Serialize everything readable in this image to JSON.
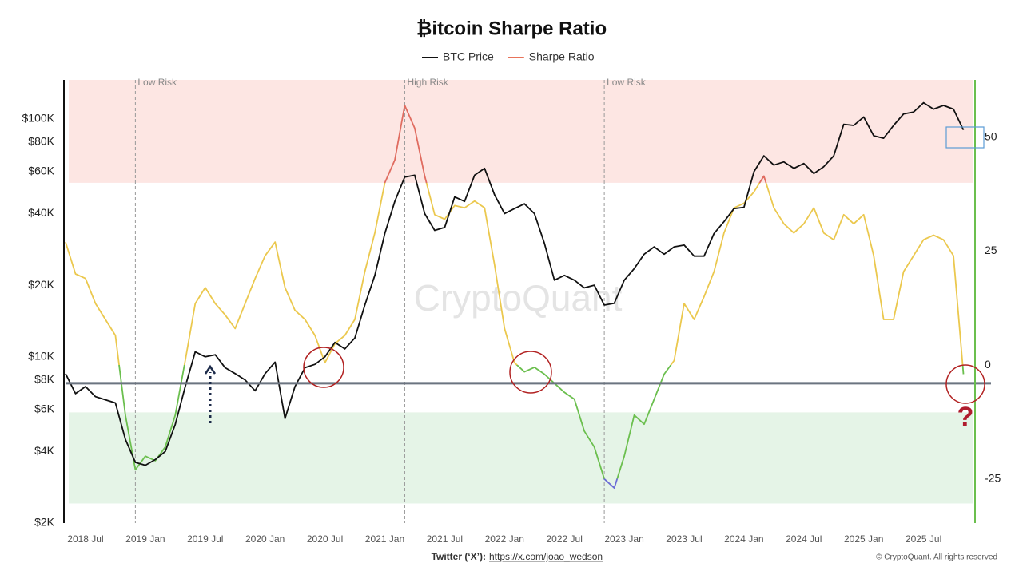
{
  "chart_data": {
    "type": "line",
    "title": "₿itcoin Sharpe Ratio",
    "watermark": "CryptoQuant",
    "credit_label": "Twitter (‘X’):",
    "credit_url": "https://x.com/joao_wedson",
    "copyright": "© CryptoQuant. All rights reserved",
    "annotation_symbol": "?",
    "x": [
      "2018-05",
      "2018-06",
      "2018-07",
      "2018-08",
      "2018-09",
      "2018-10",
      "2018-11",
      "2018-12",
      "2019-01",
      "2019-02",
      "2019-03",
      "2019-04",
      "2019-05",
      "2019-06",
      "2019-07",
      "2019-08",
      "2019-09",
      "2019-10",
      "2019-11",
      "2019-12",
      "2020-01",
      "2020-02",
      "2020-03",
      "2020-04",
      "2020-05",
      "2020-06",
      "2020-07",
      "2020-08",
      "2020-09",
      "2020-10",
      "2020-11",
      "2020-12",
      "2021-01",
      "2021-02",
      "2021-03",
      "2021-04",
      "2021-05",
      "2021-06",
      "2021-07",
      "2021-08",
      "2021-09",
      "2021-10",
      "2021-11",
      "2021-12",
      "2022-01",
      "2022-02",
      "2022-03",
      "2022-04",
      "2022-05",
      "2022-06",
      "2022-07",
      "2022-08",
      "2022-09",
      "2022-10",
      "2022-11",
      "2022-12",
      "2023-01",
      "2023-02",
      "2023-03",
      "2023-04",
      "2023-05",
      "2023-06",
      "2023-07",
      "2023-08",
      "2023-09",
      "2023-10",
      "2023-11",
      "2023-12",
      "2024-01",
      "2024-02",
      "2024-03",
      "2024-04",
      "2024-05",
      "2024-06",
      "2024-07",
      "2024-08",
      "2024-09",
      "2024-10",
      "2024-11",
      "2024-12",
      "2025-01",
      "2025-02",
      "2025-03",
      "2025-04",
      "2025-05",
      "2025-06",
      "2025-07",
      "2025-08",
      "2025-09",
      "2025-10",
      "2025-11"
    ],
    "series": [
      {
        "name": "BTC Price",
        "color": "#111111",
        "axis": "y",
        "values": [
          8500,
          7000,
          7500,
          6800,
          6600,
          6400,
          4500,
          3600,
          3500,
          3700,
          4000,
          5200,
          7500,
          10500,
          10000,
          10200,
          9000,
          8500,
          8000,
          7200,
          8500,
          9500,
          5500,
          7500,
          9000,
          9300,
          10000,
          11500,
          10800,
          12000,
          16500,
          22000,
          33000,
          45000,
          57000,
          58000,
          40000,
          34000,
          35000,
          47000,
          45000,
          58000,
          62000,
          48000,
          40000,
          42000,
          44000,
          40000,
          30000,
          21000,
          22000,
          21000,
          19500,
          20000,
          16500,
          16800,
          21000,
          23500,
          27000,
          29000,
          27000,
          29000,
          29500,
          26500,
          26500,
          33000,
          37000,
          42000,
          42500,
          60000,
          70000,
          64000,
          66000,
          62000,
          65000,
          59000,
          63000,
          70000,
          95000,
          94000,
          102000,
          85000,
          83000,
          94000,
          105000,
          107000,
          117000,
          110000,
          114000,
          110000,
          90000
        ]
      },
      {
        "name": "Sharpe Ratio",
        "color": "#e8735a",
        "axis": "y2",
        "values": [
          27,
          20,
          19,
          13.5,
          10,
          6.5,
          -11,
          -23,
          -20,
          -21,
          -18,
          -11,
          1,
          13.5,
          17,
          13.5,
          11,
          8,
          13.5,
          19,
          24,
          27,
          17,
          12,
          10,
          6.5,
          0.5,
          4.7,
          6.5,
          10,
          20.5,
          29,
          40,
          45,
          57,
          52,
          41.5,
          33,
          32,
          35,
          34.5,
          36,
          34.5,
          22,
          8,
          0.5,
          -1.5,
          -0.5,
          -2,
          -4,
          -6,
          -7.5,
          -14.5,
          -18,
          -25,
          -27,
          -20,
          -11,
          -13,
          -7.5,
          -2,
          1,
          13.5,
          10,
          15,
          20.5,
          29,
          34.5,
          35.5,
          38,
          41.5,
          34.5,
          31,
          29,
          31,
          34.5,
          29,
          27.5,
          33,
          31,
          33,
          24,
          10,
          10,
          20.5,
          24,
          27.5,
          28.5,
          27.5,
          24,
          -2
        ]
      }
    ],
    "zone_colors": [
      {
        "above": 40,
        "color": "#e06c60"
      },
      {
        "above": 0,
        "color": "#ebc84e"
      },
      {
        "above": -25,
        "color": "#6bbf4e"
      },
      {
        "color": "#6b6bd6"
      }
    ],
    "shaded_bands": [
      {
        "from": 40,
        "to": 62.6,
        "color": "#fde6e3"
      },
      {
        "from": -30.4,
        "to": -10.4,
        "color": "#e5f4e7"
      }
    ],
    "reference_line": -4,
    "markers": [
      {
        "x": "2018-12",
        "label": "Low Risk"
      },
      {
        "x": "2021-03",
        "label": "High Risk"
      },
      {
        "x": "2022-11",
        "label": "Low Risk"
      }
    ],
    "xlim": [
      "2018-05",
      "2025-12"
    ],
    "xticks": [
      {
        "value": "2018-07",
        "label": "2018 Jul"
      },
      {
        "value": "2019-01",
        "label": "2019 Jan"
      },
      {
        "value": "2019-07",
        "label": "2019 Jul"
      },
      {
        "value": "2020-01",
        "label": "2020 Jan"
      },
      {
        "value": "2020-07",
        "label": "2020 Jul"
      },
      {
        "value": "2021-01",
        "label": "2021 Jan"
      },
      {
        "value": "2021-07",
        "label": "2021 Jul"
      },
      {
        "value": "2022-01",
        "label": "2022 Jan"
      },
      {
        "value": "2022-07",
        "label": "2022 Jul"
      },
      {
        "value": "2023-01",
        "label": "2023 Jan"
      },
      {
        "value": "2023-07",
        "label": "2023 Jul"
      },
      {
        "value": "2024-01",
        "label": "2024 Jan"
      },
      {
        "value": "2024-07",
        "label": "2024 Jul"
      },
      {
        "value": "2025-01",
        "label": "2025 Jan"
      },
      {
        "value": "2025-07",
        "label": "2025 Jul"
      }
    ],
    "y_scale": "log",
    "ylim": [
      2000,
      146000
    ],
    "yticks": [
      {
        "value": 2000,
        "label": "$2K"
      },
      {
        "value": 4000,
        "label": "$4K"
      },
      {
        "value": 6000,
        "label": "$6K"
      },
      {
        "value": 8000,
        "label": "$8K"
      },
      {
        "value": 10000,
        "label": "$10K"
      },
      {
        "value": 20000,
        "label": "$20K"
      },
      {
        "value": 40000,
        "label": "$40K"
      },
      {
        "value": 60000,
        "label": "$60K"
      },
      {
        "value": 80000,
        "label": "$80K"
      },
      {
        "value": 100000,
        "label": "$100K"
      }
    ],
    "y2lim": [
      -34.7,
      62.6
    ],
    "y2ticks": [
      -25,
      0,
      25,
      50
    ],
    "grid": false
  }
}
